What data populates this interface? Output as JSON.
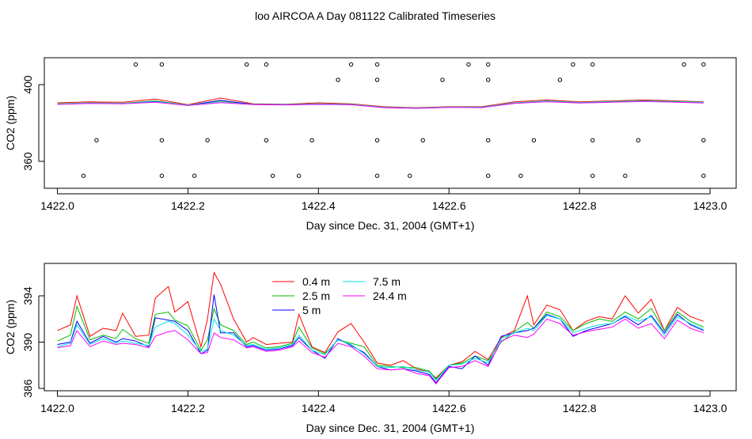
{
  "title": "loo AIRCOA A  Day 081122  Calibrated Timeseries",
  "chart_data": [
    {
      "type": "line",
      "xlabel": "Day since Dec. 31, 2004 (GMT+1)",
      "ylabel": "CO2 (ppm)",
      "xlim": [
        1421.98,
        1423.04
      ],
      "ylim": [
        346,
        414
      ],
      "xticks": [
        "1422.0",
        "1422.2",
        "1422.4",
        "1422.6",
        "1422.8",
        "1423.0"
      ],
      "xtick_values": [
        1422.0,
        1422.2,
        1422.4,
        1422.6,
        1422.8,
        1423.0
      ],
      "yticks": [
        "360",
        "400"
      ],
      "ytick_values": [
        360,
        400
      ],
      "x": [
        1422.0,
        1422.05,
        1422.1,
        1422.15,
        1422.2,
        1422.25,
        1422.3,
        1422.35,
        1422.4,
        1422.45,
        1422.5,
        1422.55,
        1422.6,
        1422.65,
        1422.7,
        1422.75,
        1422.8,
        1422.85,
        1422.9,
        1422.95,
        1422.99
      ],
      "series": [
        {
          "color": "#ff0000",
          "values": [
            390.5,
            391.0,
            390.8,
            392.5,
            389.5,
            393.0,
            390.0,
            389.8,
            390.5,
            390.0,
            388.5,
            388.0,
            388.5,
            388.5,
            391.0,
            392.0,
            391.0,
            391.5,
            392.0,
            391.5,
            391.0
          ]
        },
        {
          "color": "#00cc00",
          "values": [
            390.0,
            390.5,
            390.3,
            391.5,
            389.3,
            391.5,
            389.8,
            389.6,
            390.0,
            389.8,
            388.2,
            387.8,
            388.3,
            388.3,
            390.5,
            391.5,
            390.7,
            391.2,
            391.6,
            391.2,
            390.8
          ]
        },
        {
          "color": "#0000ff",
          "values": [
            389.8,
            390.3,
            390.1,
            391.2,
            389.2,
            391.8,
            389.7,
            389.5,
            389.8,
            389.6,
            388.1,
            387.7,
            388.2,
            388.2,
            390.3,
            391.3,
            390.5,
            391.0,
            391.4,
            391.0,
            390.6
          ]
        },
        {
          "color": "#00e5e5",
          "values": [
            389.9,
            390.4,
            390.2,
            391.0,
            389.3,
            390.8,
            389.7,
            389.6,
            389.9,
            389.7,
            388.2,
            387.8,
            388.3,
            388.2,
            390.4,
            391.4,
            390.6,
            391.1,
            391.5,
            391.1,
            390.7
          ]
        },
        {
          "color": "#ff00ff",
          "values": [
            389.7,
            390.2,
            390.0,
            390.8,
            389.1,
            390.6,
            389.6,
            389.4,
            389.7,
            389.5,
            388.0,
            387.6,
            388.1,
            388.0,
            390.2,
            391.1,
            390.4,
            390.8,
            391.2,
            390.8,
            390.4
          ]
        }
      ],
      "scatter": {
        "color": "#000000",
        "x": [
          1422.12,
          1422.16,
          1422.29,
          1422.32,
          1422.45,
          1422.49,
          1422.63,
          1422.66,
          1422.79,
          1422.82,
          1422.96,
          1422.99,
          1422.43,
          1422.49,
          1422.59,
          1422.66,
          1422.77,
          1422.06,
          1422.16,
          1422.23,
          1422.32,
          1422.39,
          1422.49,
          1422.56,
          1422.66,
          1422.73,
          1422.82,
          1422.89,
          1422.99,
          1422.04,
          1422.16,
          1422.21,
          1422.33,
          1422.37,
          1422.49,
          1422.54,
          1422.66,
          1422.71,
          1422.82,
          1422.87,
          1422.99
        ],
        "y": [
          410.5,
          410.5,
          410.5,
          410.5,
          410.5,
          410.5,
          410.5,
          410.5,
          410.5,
          410.5,
          410.5,
          410.5,
          402.5,
          402.5,
          402.5,
          402.5,
          402.5,
          371,
          371,
          371,
          371,
          371,
          371,
          371,
          371,
          371,
          371,
          371,
          371,
          352.5,
          352.5,
          352.5,
          352.5,
          352.5,
          352.5,
          352.5,
          352.5,
          352.5,
          352.5,
          352.5,
          352.5
        ]
      }
    },
    {
      "type": "line",
      "xlabel": "Day since Dec. 31, 2004 (GMT+1)",
      "ylabel": "CO2 (ppm)",
      "xlim": [
        1421.98,
        1423.04
      ],
      "ylim": [
        385.8,
        396.8
      ],
      "xticks": [
        "1422.0",
        "1422.2",
        "1422.4",
        "1422.6",
        "1422.8",
        "1423.0"
      ],
      "xtick_values": [
        1422.0,
        1422.2,
        1422.4,
        1422.6,
        1422.8,
        1423.0
      ],
      "yticks": [
        "386",
        "390",
        "394"
      ],
      "ytick_values": [
        386,
        390,
        394
      ],
      "legend": {
        "position": "top-center"
      },
      "x": [
        1422.0,
        1422.02,
        1422.03,
        1422.05,
        1422.07,
        1422.09,
        1422.1,
        1422.12,
        1422.14,
        1422.15,
        1422.17,
        1422.18,
        1422.2,
        1422.22,
        1422.23,
        1422.24,
        1422.25,
        1422.27,
        1422.29,
        1422.3,
        1422.32,
        1422.34,
        1422.36,
        1422.37,
        1422.39,
        1422.41,
        1422.43,
        1422.45,
        1422.47,
        1422.49,
        1422.51,
        1422.53,
        1422.55,
        1422.57,
        1422.58,
        1422.6,
        1422.62,
        1422.64,
        1422.66,
        1422.68,
        1422.7,
        1422.72,
        1422.73,
        1422.75,
        1422.77,
        1422.79,
        1422.81,
        1422.83,
        1422.85,
        1422.87,
        1422.89,
        1422.91,
        1422.93,
        1422.95,
        1422.97,
        1422.99
      ],
      "series": [
        {
          "name": "0.4 m",
          "color": "#ff0000",
          "values": [
            391.0,
            391.5,
            394.0,
            390.5,
            391.2,
            391.0,
            392.5,
            390.5,
            390.6,
            393.8,
            394.8,
            392.6,
            393.5,
            389.6,
            392.0,
            396.0,
            395.0,
            392.0,
            390.0,
            390.4,
            389.8,
            389.9,
            390.0,
            392.4,
            389.6,
            389.1,
            390.9,
            391.6,
            390.0,
            388.2,
            388.0,
            388.4,
            387.7,
            387.4,
            386.9,
            388.0,
            388.3,
            389.2,
            388.5,
            390.4,
            391.0,
            394.0,
            391.5,
            393.2,
            392.8,
            391.0,
            391.8,
            392.2,
            392.0,
            394.0,
            392.5,
            393.7,
            391.0,
            393.0,
            392.2,
            391.8
          ]
        },
        {
          "name": "2.5 m",
          "color": "#00bb00",
          "values": [
            390.1,
            390.6,
            393.1,
            390.2,
            390.6,
            390.3,
            391.1,
            390.3,
            389.9,
            392.4,
            392.6,
            391.9,
            391.4,
            389.3,
            390.2,
            392.9,
            391.5,
            391.0,
            389.8,
            390.0,
            389.5,
            389.6,
            389.9,
            391.3,
            389.5,
            389.0,
            390.2,
            389.9,
            389.6,
            388.0,
            387.9,
            387.8,
            387.8,
            387.5,
            386.8,
            388.0,
            388.2,
            388.8,
            388.4,
            390.0,
            390.9,
            391.7,
            391.2,
            392.6,
            392.2,
            391.0,
            391.6,
            392.0,
            391.8,
            392.6,
            392.0,
            392.9,
            391.0,
            392.6,
            391.8,
            391.3
          ]
        },
        {
          "name": "5 m",
          "color": "#0000ff",
          "values": [
            389.8,
            390.0,
            391.8,
            389.9,
            390.5,
            390.0,
            390.3,
            390.1,
            389.6,
            392.1,
            391.9,
            391.8,
            391.0,
            389.0,
            389.3,
            394.1,
            390.8,
            390.8,
            389.6,
            389.7,
            389.3,
            389.4,
            389.7,
            390.4,
            389.3,
            388.6,
            390.3,
            389.7,
            389.1,
            387.9,
            387.6,
            387.7,
            387.5,
            387.2,
            386.5,
            387.9,
            387.7,
            388.8,
            388.0,
            390.5,
            390.8,
            391.0,
            391.2,
            392.4,
            392.0,
            390.5,
            391.0,
            391.3,
            391.6,
            392.2,
            391.5,
            392.3,
            390.8,
            392.4,
            391.5,
            391.0
          ]
        },
        {
          "name": "7.5 m",
          "color": "#00e5e5",
          "values": [
            389.6,
            389.9,
            391.5,
            389.8,
            390.3,
            389.9,
            390.1,
            389.9,
            389.7,
            391.3,
            391.8,
            391.6,
            390.6,
            389.2,
            389.4,
            392.0,
            391.0,
            390.6,
            389.7,
            389.8,
            389.4,
            389.5,
            389.8,
            390.6,
            389.3,
            388.9,
            390.2,
            389.8,
            389.0,
            387.9,
            387.8,
            387.9,
            387.6,
            387.4,
            386.7,
            388.0,
            388.1,
            388.6,
            388.2,
            390.3,
            390.8,
            391.2,
            391.0,
            392.3,
            392.0,
            390.8,
            391.2,
            391.5,
            391.6,
            392.3,
            391.8,
            392.2,
            390.6,
            392.2,
            391.6,
            391.1
          ]
        },
        {
          "name": "24.4 m",
          "color": "#ff00ff",
          "values": [
            389.5,
            389.7,
            391.0,
            389.6,
            390.1,
            389.8,
            389.9,
            389.8,
            389.5,
            390.5,
            390.9,
            391.0,
            390.2,
            389.0,
            389.1,
            390.8,
            390.4,
            390.2,
            389.5,
            389.6,
            389.2,
            389.3,
            389.6,
            390.1,
            389.1,
            388.7,
            389.9,
            389.6,
            388.8,
            387.7,
            387.6,
            387.7,
            387.3,
            387.1,
            386.4,
            387.8,
            387.9,
            388.4,
            387.9,
            390.1,
            390.6,
            390.4,
            390.7,
            392.0,
            391.6,
            390.6,
            390.9,
            391.1,
            391.3,
            392.0,
            391.2,
            391.6,
            390.3,
            391.9,
            391.2,
            390.8
          ]
        }
      ]
    }
  ]
}
